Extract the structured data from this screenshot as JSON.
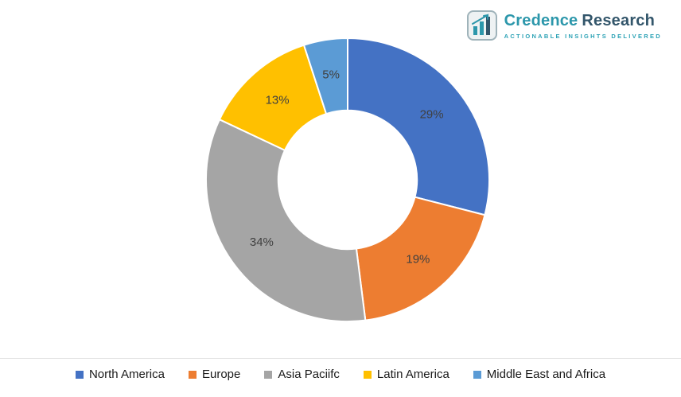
{
  "logo": {
    "brand_first": "Credence",
    "brand_second": "Research",
    "tagline": "Actionable Insights Delivered",
    "icon": "bar-chart-logo-icon",
    "teal": "#2c97ab",
    "dark": "#33566b"
  },
  "chart_data": {
    "type": "pie",
    "subtype": "donut",
    "title": "",
    "categories": [
      "North America",
      "Europe",
      "Asia Paciifc",
      "Latin America",
      "Middle East and Africa"
    ],
    "values": [
      29,
      19,
      34,
      13,
      5
    ],
    "labels": [
      "29%",
      "19%",
      "34%",
      "13%",
      "5%"
    ],
    "colors": [
      "#4472C4",
      "#ED7D31",
      "#A5A5A5",
      "#FFC000",
      "#5B9BD5"
    ],
    "start_angle_deg": 0,
    "direction": "clockwise",
    "inner_radius_ratio": 0.49,
    "legend_position": "bottom",
    "label_color": "#404040"
  }
}
